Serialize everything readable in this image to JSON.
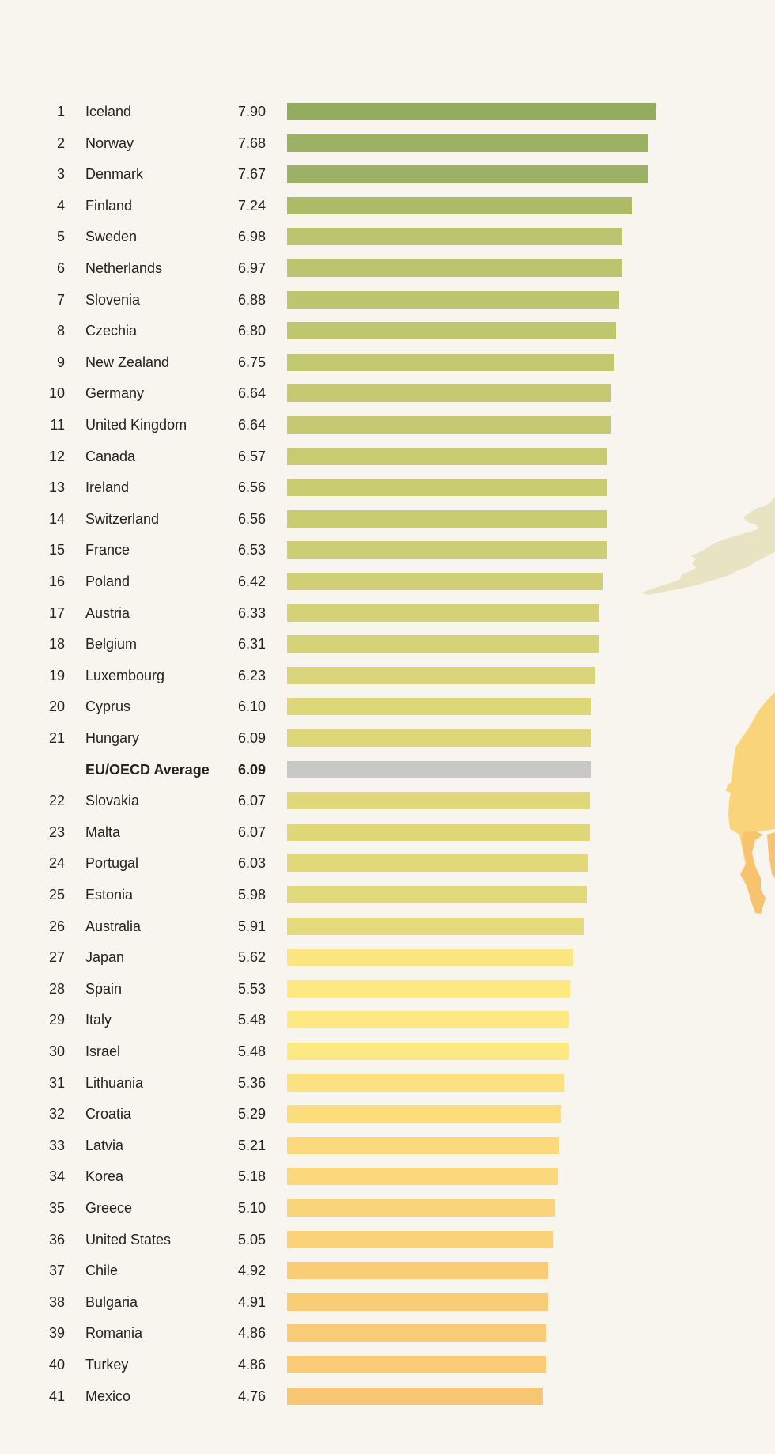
{
  "chart_data": {
    "type": "bar",
    "orientation": "horizontal",
    "title": "",
    "xlabel": "",
    "ylabel": "",
    "xlim": [
      -2.34,
      7.9
    ],
    "grid": false,
    "rows": [
      {
        "rank": "1",
        "name": "Iceland",
        "value": 7.9,
        "label": "7.90",
        "color": "#92ab5f"
      },
      {
        "rank": "2",
        "name": "Norway",
        "value": 7.68,
        "label": "7.68",
        "color": "#9cb165"
      },
      {
        "rank": "3",
        "name": "Denmark",
        "value": 7.67,
        "label": "7.67",
        "color": "#9cb165"
      },
      {
        "rank": "4",
        "name": "Finland",
        "value": 7.24,
        "label": "7.24",
        "color": "#adbb67"
      },
      {
        "rank": "5",
        "name": "Sweden",
        "value": 6.98,
        "label": "6.98",
        "color": "#bcc46f"
      },
      {
        "rank": "6",
        "name": "Netherlands",
        "value": 6.97,
        "label": "6.97",
        "color": "#bcc46f"
      },
      {
        "rank": "7",
        "name": "Slovenia",
        "value": 6.88,
        "label": "6.88",
        "color": "#bec56f"
      },
      {
        "rank": "8",
        "name": "Czechia",
        "value": 6.8,
        "label": "6.80",
        "color": "#c0c670"
      },
      {
        "rank": "9",
        "name": "New Zealand",
        "value": 6.75,
        "label": "6.75",
        "color": "#c2c771"
      },
      {
        "rank": "10",
        "name": "Germany",
        "value": 6.64,
        "label": "6.64",
        "color": "#c6c972"
      },
      {
        "rank": "11",
        "name": "United Kingdom",
        "value": 6.64,
        "label": "6.64",
        "color": "#c6c972"
      },
      {
        "rank": "12",
        "name": "Canada",
        "value": 6.57,
        "label": "6.57",
        "color": "#c9cb73"
      },
      {
        "rank": "13",
        "name": "Ireland",
        "value": 6.56,
        "label": "6.56",
        "color": "#cacc74"
      },
      {
        "rank": "14",
        "name": "Switzerland",
        "value": 6.56,
        "label": "6.56",
        "color": "#cacc74"
      },
      {
        "rank": "15",
        "name": "France",
        "value": 6.53,
        "label": "6.53",
        "color": "#cccd75"
      },
      {
        "rank": "16",
        "name": "Poland",
        "value": 6.42,
        "label": "6.42",
        "color": "#d0cf76"
      },
      {
        "rank": "17",
        "name": "Austria",
        "value": 6.33,
        "label": "6.33",
        "color": "#d4d177"
      },
      {
        "rank": "18",
        "name": "Belgium",
        "value": 6.31,
        "label": "6.31",
        "color": "#d5d278"
      },
      {
        "rank": "19",
        "name": "Luxembourg",
        "value": 6.23,
        "label": "6.23",
        "color": "#d9d479"
      },
      {
        "rank": "20",
        "name": "Cyprus",
        "value": 6.1,
        "label": "6.10",
        "color": "#ded77a"
      },
      {
        "rank": "21",
        "name": "Hungary",
        "value": 6.09,
        "label": "6.09",
        "color": "#ded77a"
      },
      {
        "rank": "",
        "name": "EU/OECD Average",
        "value": 6.09,
        "label": "6.09",
        "color": "#c8c8c6",
        "average": true
      },
      {
        "rank": "22",
        "name": "Slovakia",
        "value": 6.07,
        "label": "6.07",
        "color": "#dfd77a"
      },
      {
        "rank": "23",
        "name": "Malta",
        "value": 6.07,
        "label": "6.07",
        "color": "#dfd77a"
      },
      {
        "rank": "24",
        "name": "Portugal",
        "value": 6.03,
        "label": "6.03",
        "color": "#e0d87b"
      },
      {
        "rank": "25",
        "name": "Estonia",
        "value": 5.98,
        "label": "5.98",
        "color": "#e2d97c"
      },
      {
        "rank": "26",
        "name": "Australia",
        "value": 5.91,
        "label": "5.91",
        "color": "#e4da7d"
      },
      {
        "rank": "27",
        "name": "Japan",
        "value": 5.62,
        "label": "5.62",
        "color": "#fce682"
      },
      {
        "rank": "28",
        "name": "Spain",
        "value": 5.53,
        "label": "5.53",
        "color": "#fee881"
      },
      {
        "rank": "29",
        "name": "Italy",
        "value": 5.48,
        "label": "5.48",
        "color": "#fee881"
      },
      {
        "rank": "30",
        "name": "Israel",
        "value": 5.48,
        "label": "5.48",
        "color": "#fee881"
      },
      {
        "rank": "31",
        "name": "Lithuania",
        "value": 5.36,
        "label": "5.36",
        "color": "#fde180"
      },
      {
        "rank": "32",
        "name": "Croatia",
        "value": 5.29,
        "label": "5.29",
        "color": "#fcdd7e"
      },
      {
        "rank": "33",
        "name": "Latvia",
        "value": 5.21,
        "label": "5.21",
        "color": "#fbd97c"
      },
      {
        "rank": "34",
        "name": "Korea",
        "value": 5.18,
        "label": "5.18",
        "color": "#fbd87c"
      },
      {
        "rank": "35",
        "name": "Greece",
        "value": 5.1,
        "label": "5.10",
        "color": "#fad47a"
      },
      {
        "rank": "36",
        "name": "United States",
        "value": 5.05,
        "label": "5.05",
        "color": "#fad27a"
      },
      {
        "rank": "37",
        "name": "Chile",
        "value": 4.92,
        "label": "4.92",
        "color": "#f9cd78"
      },
      {
        "rank": "38",
        "name": "Bulgaria",
        "value": 4.91,
        "label": "4.91",
        "color": "#f9cc77"
      },
      {
        "rank": "39",
        "name": "Romania",
        "value": 4.86,
        "label": "4.86",
        "color": "#f9cb77"
      },
      {
        "rank": "40",
        "name": "Turkey",
        "value": 4.86,
        "label": "4.86",
        "color": "#f9cb77"
      },
      {
        "rank": "41",
        "name": "Mexico",
        "value": 4.76,
        "label": "4.76",
        "color": "#f7c673"
      }
    ]
  },
  "map_colors": {
    "scandinavia": "#e8e3c2",
    "africa_north": "#fad47a",
    "africa_south": "#f7c36e"
  }
}
